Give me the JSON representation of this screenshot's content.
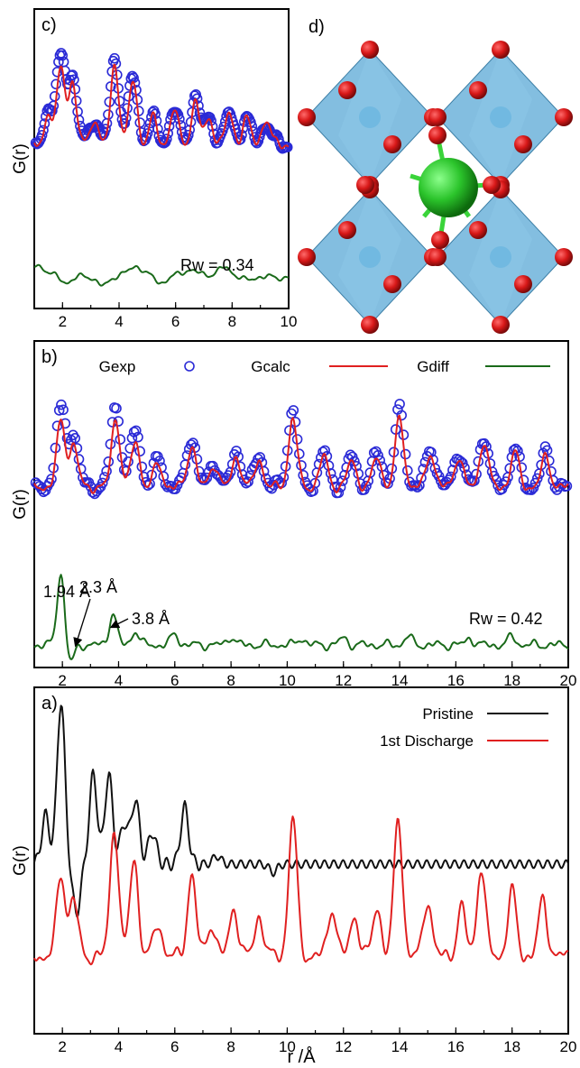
{
  "chart_data": [
    {
      "panel": "c)",
      "type": "line",
      "ylabel": "G(r)",
      "xlim": [
        1,
        10
      ],
      "xticks": [
        "2",
        "4",
        "6",
        "8",
        "10"
      ],
      "annotation": "Rw = 0.34",
      "colors": {
        "Gexp": "#2a2ad6",
        "Gcalc": "#e02020",
        "Gdiff": "#1a6a1a"
      },
      "series": [
        {
          "name": "Gexp",
          "marker": "circle",
          "peaks": [
            [
              1.5,
              0.4
            ],
            [
              1.95,
              1.0
            ],
            [
              2.35,
              0.75
            ],
            [
              3.1,
              0.3
            ],
            [
              3.85,
              1.0
            ],
            [
              4.5,
              0.8
            ],
            [
              5.2,
              0.3
            ],
            [
              5.95,
              0.4
            ],
            [
              6.7,
              0.55
            ],
            [
              7.2,
              0.3
            ],
            [
              7.9,
              0.35
            ],
            [
              8.5,
              0.3
            ],
            [
              9.2,
              0.25
            ]
          ]
        },
        {
          "name": "Gcalc",
          "peaks": [
            [
              1.5,
              0.35
            ],
            [
              1.95,
              0.9
            ],
            [
              2.35,
              0.7
            ],
            [
              3.1,
              0.3
            ],
            [
              3.85,
              0.95
            ],
            [
              4.5,
              0.75
            ],
            [
              5.2,
              0.3
            ],
            [
              5.95,
              0.4
            ],
            [
              6.7,
              0.5
            ],
            [
              7.2,
              0.3
            ],
            [
              7.9,
              0.35
            ],
            [
              8.5,
              0.3
            ],
            [
              9.2,
              0.3
            ]
          ]
        },
        {
          "name": "Gdiff",
          "peaks": [
            [
              1.1,
              0.3
            ],
            [
              2.2,
              -0.2
            ],
            [
              3.4,
              -0.3
            ],
            [
              4.6,
              0.25
            ],
            [
              5.5,
              -0.2
            ],
            [
              6.5,
              0.15
            ],
            [
              7.7,
              0.2
            ],
            [
              8.6,
              -0.15
            ],
            [
              9.6,
              -0.1
            ]
          ]
        }
      ]
    },
    {
      "panel": "b)",
      "type": "line",
      "ylabel": "G(r)",
      "xlim": [
        1,
        20
      ],
      "xticks": [
        "2",
        "4",
        "6",
        "8",
        "10",
        "12",
        "14",
        "16",
        "18",
        "20"
      ],
      "legend": [
        "Gexp",
        "Gcalc",
        "Gdiff"
      ],
      "annotation": "Rw = 0.42",
      "peak_labels": [
        "1.94 Å",
        "2.3 Å",
        "3.8 Å"
      ],
      "colors": {
        "Gexp": "#2a2ad6",
        "Gcalc": "#e02020",
        "Gdiff": "#1a6a1a"
      },
      "series": [
        {
          "name": "Gexp",
          "marker": "circle",
          "peaks": [
            [
              1.95,
              1.0
            ],
            [
              2.4,
              0.65
            ],
            [
              3.9,
              1.05
            ],
            [
              4.6,
              0.75
            ],
            [
              5.4,
              0.35
            ],
            [
              6.6,
              0.65
            ],
            [
              7.4,
              0.3
            ],
            [
              8.2,
              0.45
            ],
            [
              9.0,
              0.4
            ],
            [
              10.2,
              1.0
            ],
            [
              11.3,
              0.45
            ],
            [
              12.3,
              0.4
            ],
            [
              13.2,
              0.45
            ],
            [
              14.0,
              1.0
            ],
            [
              15.1,
              0.5
            ],
            [
              16.1,
              0.45
            ],
            [
              17.0,
              0.65
            ],
            [
              18.1,
              0.5
            ],
            [
              19.2,
              0.45
            ]
          ]
        },
        {
          "name": "Gcalc",
          "peaks": [
            [
              1.95,
              0.85
            ],
            [
              2.4,
              0.55
            ],
            [
              3.9,
              0.9
            ],
            [
              4.6,
              0.6
            ],
            [
              5.4,
              0.3
            ],
            [
              6.6,
              0.55
            ],
            [
              7.4,
              0.3
            ],
            [
              8.2,
              0.4
            ],
            [
              9.0,
              0.35
            ],
            [
              10.2,
              0.9
            ],
            [
              11.3,
              0.4
            ],
            [
              12.3,
              0.35
            ],
            [
              13.2,
              0.4
            ],
            [
              14.0,
              0.9
            ],
            [
              15.1,
              0.45
            ],
            [
              16.1,
              0.4
            ],
            [
              17.0,
              0.6
            ],
            [
              18.1,
              0.45
            ],
            [
              19.2,
              0.4
            ]
          ]
        },
        {
          "name": "Gdiff",
          "peaks": [
            [
              1.94,
              1.0
            ],
            [
              2.3,
              -0.25
            ],
            [
              3.8,
              0.45
            ],
            [
              4.6,
              0.2
            ],
            [
              6.0,
              0.15
            ],
            [
              8.0,
              0.12
            ],
            [
              10.5,
              0.1
            ],
            [
              12.0,
              0.1
            ],
            [
              14.3,
              0.12
            ],
            [
              16.5,
              0.1
            ],
            [
              18.0,
              0.12
            ]
          ]
        }
      ]
    },
    {
      "panel": "a)",
      "type": "line",
      "ylabel": "G(r)",
      "xlabel": "r /Å",
      "xlim": [
        1,
        20
      ],
      "xticks": [
        "2",
        "4",
        "6",
        "8",
        "10",
        "12",
        "14",
        "16",
        "18",
        "20"
      ],
      "legend": [
        "Pristine",
        "1st Discharge"
      ],
      "colors": {
        "Pristine": "#111111",
        "1st Discharge": "#e02020"
      },
      "series": [
        {
          "name": "Pristine",
          "peaks": [
            [
              1.95,
              1.0
            ],
            [
              1.4,
              0.3
            ],
            [
              2.5,
              -0.3
            ],
            [
              3.1,
              0.55
            ],
            [
              3.65,
              0.55
            ],
            [
              4.2,
              0.25
            ],
            [
              4.6,
              0.4
            ],
            [
              5.2,
              0.2
            ],
            [
              6.35,
              0.35
            ],
            [
              7.5,
              0.05
            ],
            [
              9.5,
              -0.05
            ]
          ]
        },
        {
          "name": "1st Discharge",
          "peaks": [
            [
              1.95,
              0.5
            ],
            [
              2.4,
              0.35
            ],
            [
              3.85,
              0.8
            ],
            [
              4.55,
              0.6
            ],
            [
              5.4,
              0.2
            ],
            [
              6.6,
              0.5
            ],
            [
              7.3,
              0.2
            ],
            [
              8.1,
              0.3
            ],
            [
              9.0,
              0.25
            ],
            [
              10.2,
              0.85
            ],
            [
              11.6,
              0.3
            ],
            [
              12.4,
              0.25
            ],
            [
              13.2,
              0.3
            ],
            [
              13.95,
              0.85
            ],
            [
              15.0,
              0.35
            ],
            [
              16.2,
              0.3
            ],
            [
              16.9,
              0.55
            ],
            [
              18.0,
              0.4
            ],
            [
              19.1,
              0.35
            ]
          ]
        }
      ]
    }
  ],
  "structure_panel": {
    "label": "d)",
    "colors": {
      "octahedra": "#5aa8d6",
      "oxygen": "#d81818",
      "center": "#2bc42b",
      "bond": "#c0392b"
    }
  }
}
